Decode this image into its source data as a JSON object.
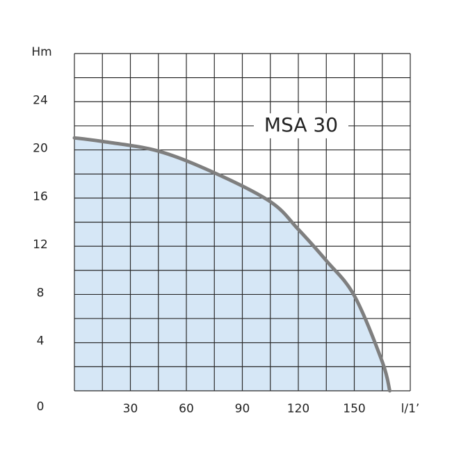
{
  "chart_data": {
    "type": "area",
    "annotation": "MSA 30",
    "y_label": "Hm",
    "x_label": "l/1’",
    "x": [
      0,
      15,
      45,
      75,
      105,
      120,
      135,
      150,
      165,
      169
    ],
    "series": [
      {
        "color": "#7f7f7f",
        "fill": "#d6e7f6",
        "values": [
          21,
          20.7,
          19.9,
          18.1,
          15.7,
          13.4,
          10.8,
          7.9,
          2.4,
          0
        ]
      }
    ],
    "xlim": [
      0,
      180
    ],
    "ylim": [
      0,
      28
    ],
    "xticks": [
      30,
      60,
      90,
      120,
      150
    ],
    "yticks": [
      0,
      4,
      8,
      12,
      16,
      20,
      24
    ],
    "x_grid_step": 15,
    "y_grid_step": 2,
    "grid": true
  }
}
